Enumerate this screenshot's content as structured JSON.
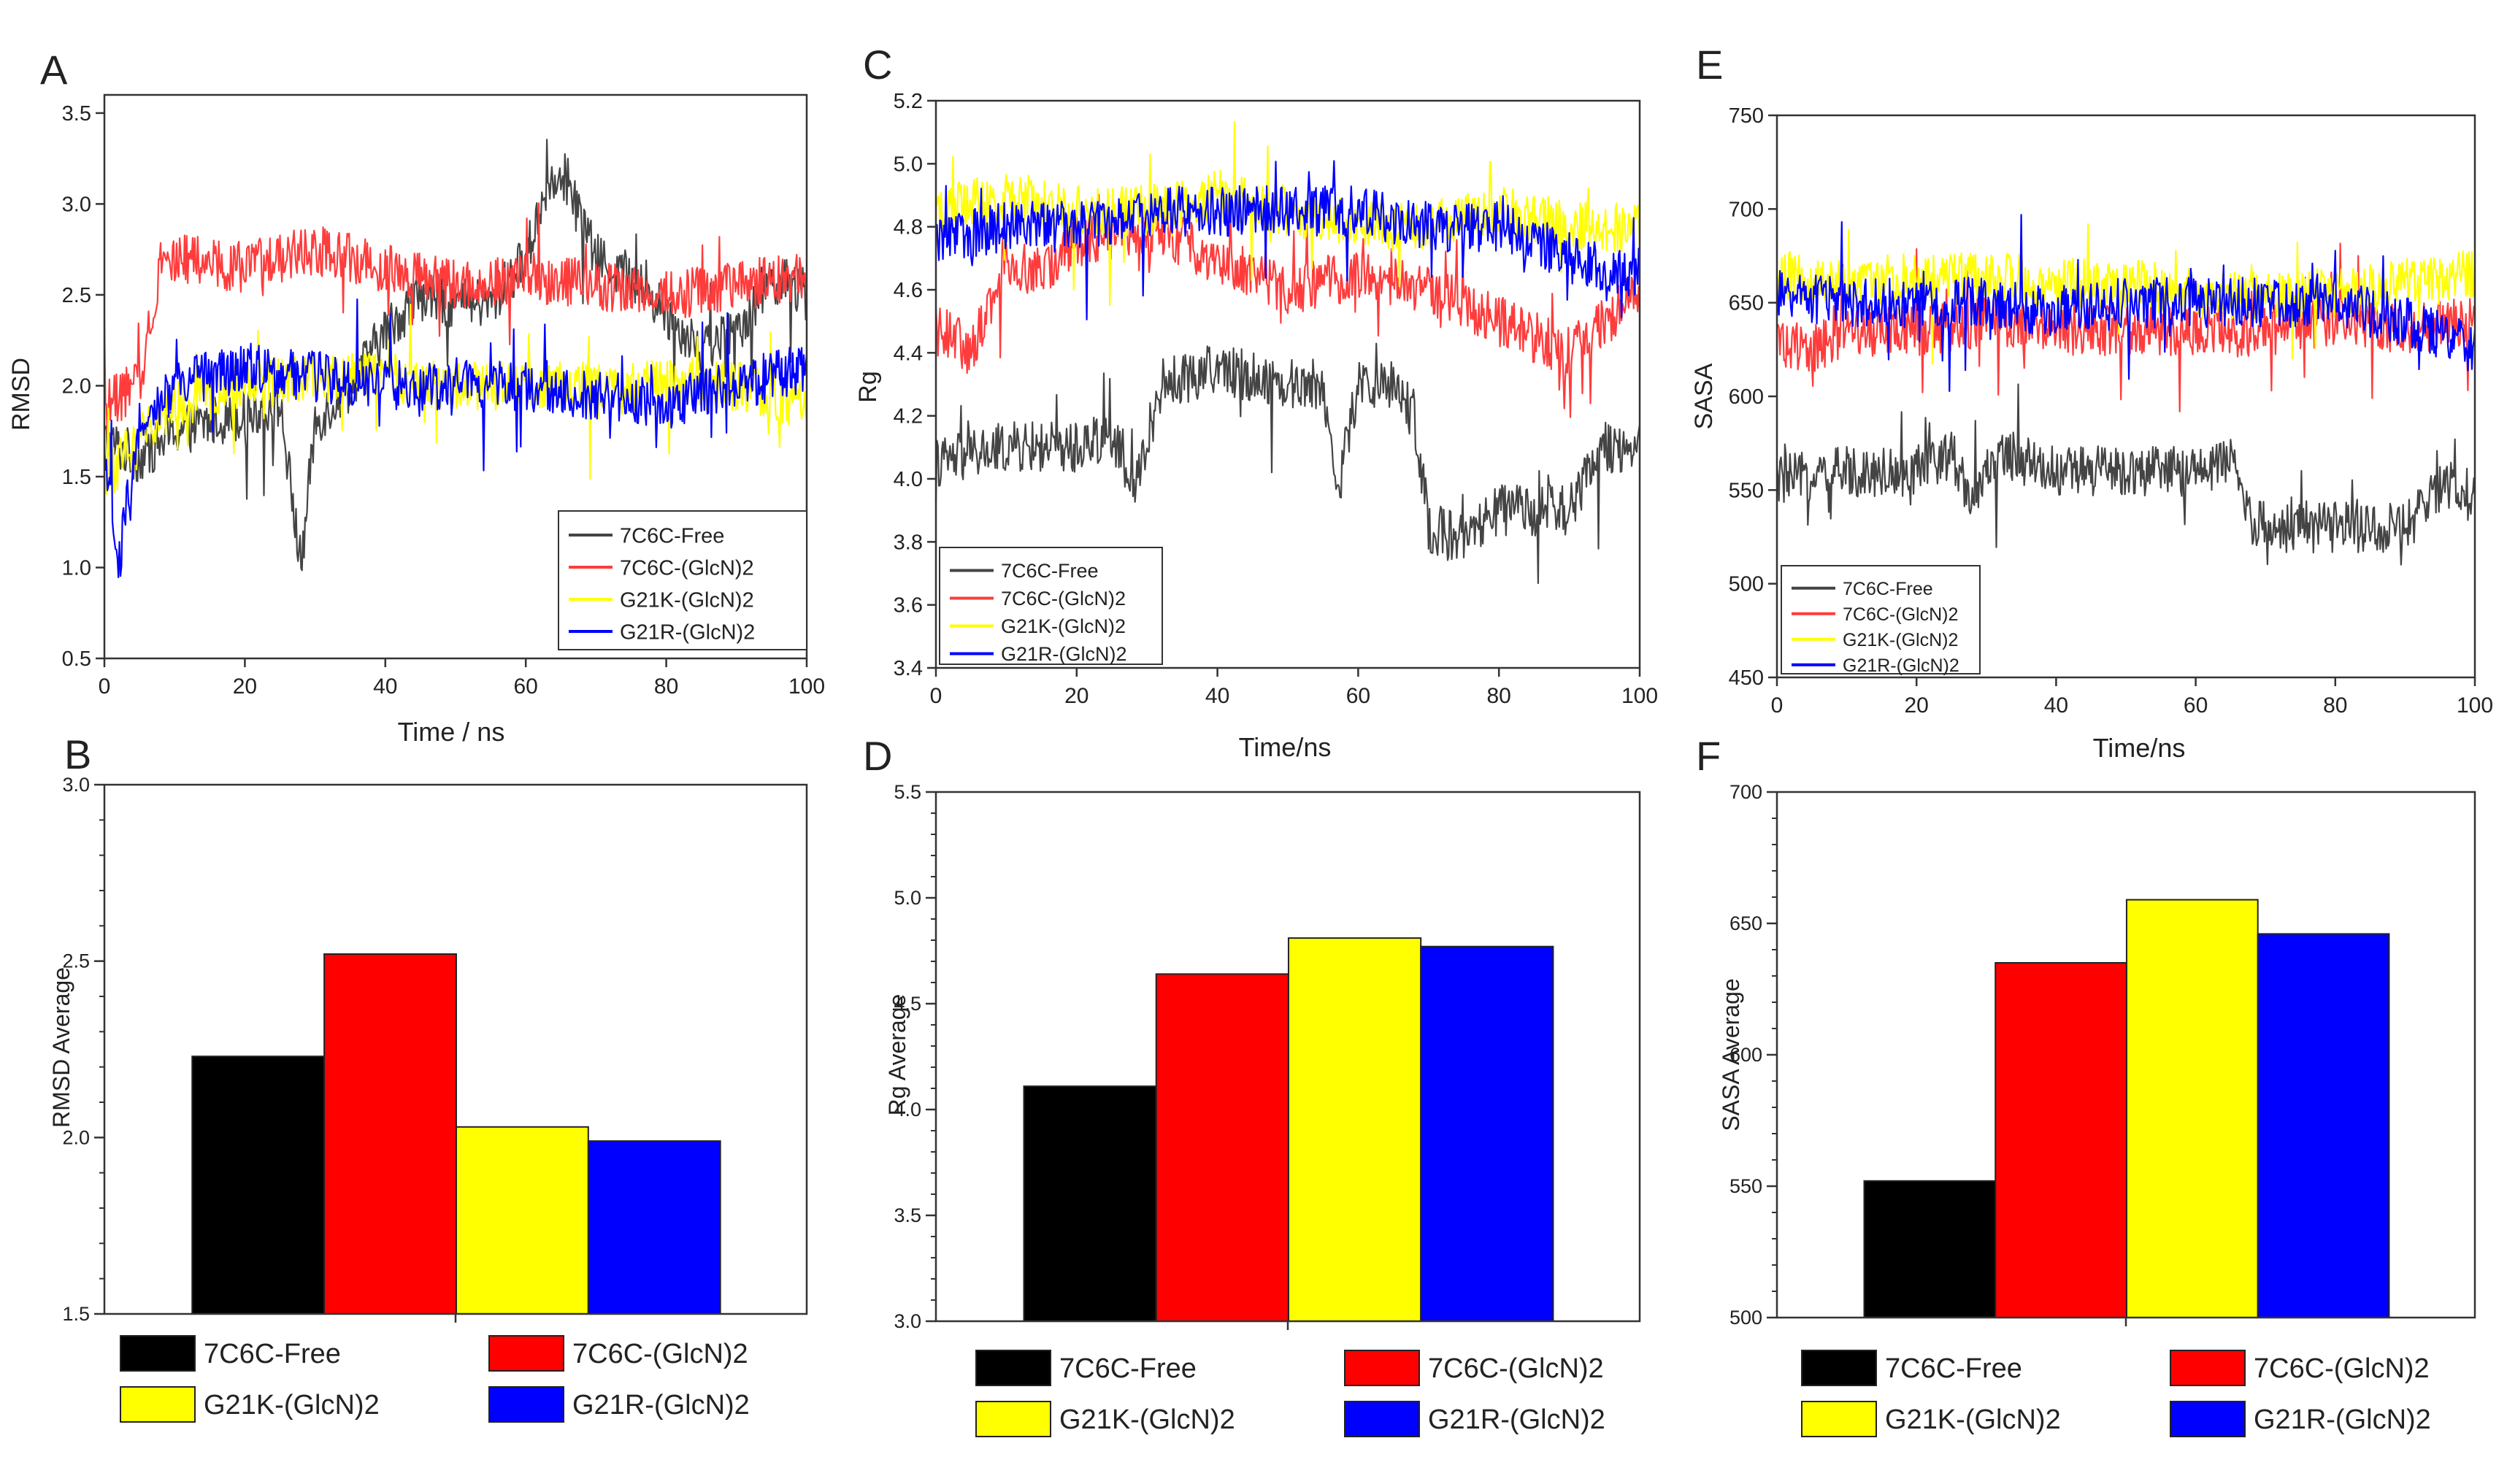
{
  "colors": {
    "free": "#000000",
    "glcn": "#ff0000",
    "g21k": "#ffff00",
    "g21r": "#0000ff",
    "free_line": "#444444",
    "glcn_line": "#ff3c3c",
    "g21k_line": "#ffff00",
    "g21r_line": "#0000ff"
  },
  "chart_data": [
    {
      "panel": "A",
      "type": "line",
      "xlabel": "Time / ns",
      "ylabel": "RMSD",
      "xlim": [
        0,
        100
      ],
      "ylim": [
        0.5,
        3.6
      ],
      "xticks": [
        0,
        20,
        40,
        60,
        80,
        100
      ],
      "yticks": [
        0.5,
        1.0,
        1.5,
        2.0,
        2.5,
        3.0,
        3.5
      ],
      "ytick_labels": [
        "0.5",
        "1.0",
        "1.5",
        "2.0",
        "2.5",
        "3.0",
        "3.5"
      ],
      "legend_position": "bottom-right",
      "series": [
        {
          "name": "7C6C-Free",
          "key": "free",
          "x": [
            0,
            5,
            10,
            15,
            20,
            25,
            27,
            28,
            30,
            35,
            40,
            45,
            50,
            55,
            60,
            63,
            65,
            68,
            70,
            75,
            80,
            85,
            90,
            95,
            100
          ],
          "y": [
            1.7,
            1.6,
            1.75,
            1.8,
            1.85,
            1.9,
            1.3,
            1.0,
            1.8,
            2.0,
            2.3,
            2.5,
            2.45,
            2.45,
            2.7,
            3.1,
            3.2,
            2.9,
            2.7,
            2.6,
            2.4,
            2.2,
            2.3,
            2.6,
            2.5
          ]
        },
        {
          "name": "7C6C-(GlcN)2",
          "key": "glcn",
          "x": [
            0,
            5,
            8,
            10,
            20,
            30,
            40,
            50,
            60,
            70,
            80,
            90,
            100
          ],
          "y": [
            1.9,
            2.0,
            2.7,
            2.7,
            2.65,
            2.75,
            2.65,
            2.55,
            2.6,
            2.55,
            2.5,
            2.55,
            2.6
          ]
        },
        {
          "name": "G21K-(GlcN)2",
          "key": "g21k",
          "x": [
            0,
            3,
            5,
            10,
            20,
            30,
            40,
            50,
            60,
            70,
            80,
            90,
            100
          ],
          "y": [
            1.5,
            1.6,
            1.7,
            1.9,
            2.0,
            2.05,
            2.05,
            2.0,
            2.0,
            2.0,
            2.0,
            2.0,
            1.9
          ]
        },
        {
          "name": "G21R-(GlcN)2",
          "key": "g21r",
          "x": [
            0,
            2,
            5,
            10,
            20,
            30,
            40,
            50,
            60,
            70,
            80,
            90,
            100
          ],
          "y": [
            1.6,
            1.0,
            1.8,
            2.0,
            2.1,
            2.05,
            2.0,
            2.0,
            2.0,
            1.95,
            1.9,
            2.0,
            2.1
          ]
        }
      ]
    },
    {
      "panel": "C",
      "type": "line",
      "xlabel": "Time/ns",
      "ylabel": "Rg",
      "xlim": [
        0,
        100
      ],
      "ylim": [
        3.4,
        5.2
      ],
      "xticks": [
        0,
        20,
        40,
        60,
        80,
        100
      ],
      "yticks": [
        3.4,
        3.6,
        3.8,
        4.0,
        4.2,
        4.4,
        4.6,
        4.8,
        5.0,
        5.2
      ],
      "ytick_labels": [
        "3.4",
        "3.6",
        "3.8",
        "4.0",
        "4.2",
        "4.4",
        "4.6",
        "4.8",
        "5.0",
        "5.2"
      ],
      "legend_position": "bottom-left",
      "series": [
        {
          "name": "7C6C-Free",
          "key": "free",
          "x": [
            0,
            10,
            20,
            25,
            28,
            32,
            40,
            50,
            55,
            57,
            60,
            65,
            68,
            70,
            75,
            80,
            85,
            90,
            95,
            100
          ],
          "y": [
            4.05,
            4.1,
            4.1,
            4.15,
            3.95,
            4.3,
            4.35,
            4.3,
            4.3,
            3.95,
            4.3,
            4.3,
            4.2,
            3.85,
            3.8,
            3.9,
            3.9,
            3.9,
            4.1,
            4.1
          ]
        },
        {
          "name": "7C6C-(GlcN)2",
          "key": "glcn",
          "x": [
            0,
            5,
            10,
            15,
            20,
            30,
            40,
            50,
            60,
            70,
            80,
            90,
            100
          ],
          "y": [
            4.5,
            4.4,
            4.7,
            4.65,
            4.75,
            4.8,
            4.7,
            4.6,
            4.65,
            4.6,
            4.5,
            4.4,
            4.6
          ]
        },
        {
          "name": "G21K-(GlcN)2",
          "key": "g21k",
          "x": [
            0,
            10,
            20,
            30,
            40,
            50,
            60,
            70,
            80,
            90,
            100
          ],
          "y": [
            4.85,
            4.9,
            4.85,
            4.85,
            4.9,
            4.85,
            4.8,
            4.8,
            4.85,
            4.8,
            4.8
          ]
        },
        {
          "name": "G21R-(GlcN)2",
          "key": "g21r",
          "x": [
            0,
            10,
            20,
            30,
            40,
            50,
            60,
            70,
            80,
            90,
            100
          ],
          "y": [
            4.75,
            4.8,
            4.8,
            4.85,
            4.85,
            4.85,
            4.85,
            4.8,
            4.8,
            4.7,
            4.65
          ]
        }
      ]
    },
    {
      "panel": "E",
      "type": "line",
      "xlabel": "Time/ns",
      "ylabel": "SASA",
      "xlim": [
        0,
        100
      ],
      "ylim": [
        450,
        750
      ],
      "xticks": [
        0,
        20,
        40,
        60,
        80,
        100
      ],
      "yticks": [
        450,
        500,
        550,
        600,
        650,
        700,
        750
      ],
      "ytick_labels": [
        "450",
        "500",
        "550",
        "600",
        "650",
        "700",
        "750"
      ],
      "legend_position": "bottom-left",
      "series": [
        {
          "name": "7C6C-Free",
          "key": "free",
          "x": [
            0,
            10,
            20,
            25,
            28,
            32,
            40,
            50,
            60,
            65,
            68,
            70,
            80,
            90,
            95,
            100
          ],
          "y": [
            555,
            560,
            560,
            570,
            545,
            570,
            560,
            560,
            560,
            565,
            535,
            530,
            530,
            530,
            550,
            550
          ]
        },
        {
          "name": "7C6C-(GlcN)2",
          "key": "glcn",
          "x": [
            0,
            5,
            10,
            20,
            30,
            40,
            50,
            60,
            70,
            80,
            90,
            100
          ],
          "y": [
            630,
            625,
            635,
            635,
            640,
            635,
            635,
            635,
            635,
            640,
            635,
            640
          ]
        },
        {
          "name": "G21K-(GlcN)2",
          "key": "g21k",
          "x": [
            0,
            10,
            20,
            30,
            40,
            50,
            60,
            70,
            80,
            90,
            100
          ],
          "y": [
            665,
            660,
            665,
            665,
            660,
            660,
            655,
            655,
            655,
            660,
            665
          ]
        },
        {
          "name": "G21R-(GlcN)2",
          "key": "g21r",
          "x": [
            0,
            10,
            20,
            30,
            40,
            50,
            60,
            70,
            80,
            90,
            100
          ],
          "y": [
            655,
            650,
            650,
            650,
            645,
            650,
            650,
            650,
            650,
            640,
            625
          ]
        }
      ]
    },
    {
      "panel": "B",
      "type": "bar",
      "ylabel": "RMSD Average",
      "ylim": [
        1.5,
        3.0
      ],
      "yticks": [
        1.5,
        2.0,
        2.5,
        3.0
      ],
      "ytick_labels": [
        "1.5",
        "2.0",
        "2.5",
        "3.0"
      ],
      "categories": [
        "7C6C-Free",
        "7C6C-(GlcN)2",
        "G21K-(GlcN)2",
        "G21R-(GlcN)2"
      ],
      "keys": [
        "free",
        "glcn",
        "g21k",
        "g21r"
      ],
      "values": [
        2.23,
        2.52,
        2.03,
        1.99
      ],
      "legend_position": "bottom"
    },
    {
      "panel": "D",
      "type": "bar",
      "ylabel": "Rg Average",
      "ylim": [
        3.0,
        5.5
      ],
      "yticks": [
        3.0,
        3.5,
        4.0,
        4.5,
        5.0,
        5.5
      ],
      "ytick_labels": [
        "3.0",
        "3.5",
        "4.0",
        "4.5",
        "5.0",
        "5.5"
      ],
      "categories": [
        "7C6C-Free",
        "7C6C-(GlcN)2",
        "G21K-(GlcN)2",
        "G21R-(GlcN)2"
      ],
      "keys": [
        "free",
        "glcn",
        "g21k",
        "g21r"
      ],
      "values": [
        4.11,
        4.64,
        4.81,
        4.77
      ],
      "legend_position": "bottom"
    },
    {
      "panel": "F",
      "type": "bar",
      "ylabel": "SASA Average",
      "ylim": [
        500,
        700
      ],
      "yticks": [
        500,
        550,
        600,
        650,
        700
      ],
      "ytick_labels": [
        "500",
        "550",
        "600",
        "650",
        "700"
      ],
      "categories": [
        "7C6C-Free",
        "7C6C-(GlcN)2",
        "G21K-(GlcN)2",
        "G21R-(GlcN)2"
      ],
      "keys": [
        "free",
        "glcn",
        "g21k",
        "g21r"
      ],
      "values": [
        552,
        635,
        659,
        646
      ],
      "legend_position": "bottom"
    }
  ]
}
